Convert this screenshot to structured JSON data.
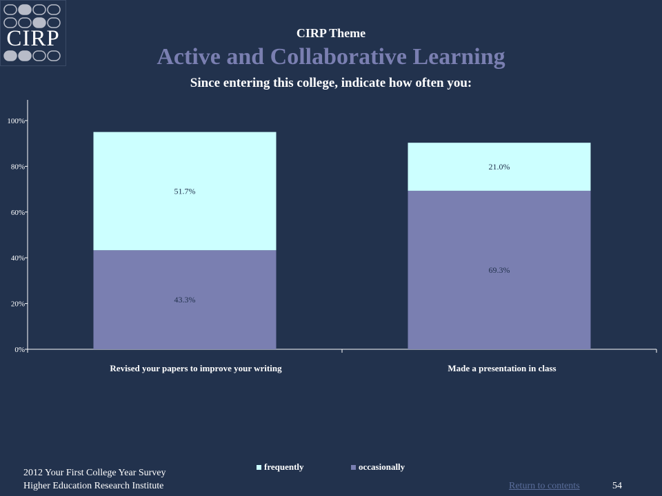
{
  "logo": {
    "text": "CIRP"
  },
  "header": {
    "theme_label": "CIRP Theme",
    "title": "Active and Collaborative Learning",
    "subtitle": "Since entering this college, indicate how often you:"
  },
  "colors": {
    "background": "#22324d",
    "title_accent": "#7a7fb1",
    "frequently": "#ccffff",
    "occasionally": "#7a7fb1",
    "link": "#5a6d9a"
  },
  "chart_data": {
    "type": "bar",
    "stacked": true,
    "categories": [
      "Revised your papers to improve your writing",
      "Made a presentation in class"
    ],
    "series": [
      {
        "name": "occasionally",
        "values": [
          43.3,
          69.3
        ],
        "labels": [
          "43.3%",
          "69.3%"
        ]
      },
      {
        "name": "frequently",
        "values": [
          51.7,
          21.0
        ],
        "labels": [
          "51.7%",
          "21.0%"
        ]
      }
    ],
    "yticks": [
      "0%",
      "20%",
      "40%",
      "60%",
      "80%",
      "100%"
    ],
    "ylim": [
      0,
      100
    ],
    "legend_position": "bottom",
    "grid": false
  },
  "legend": {
    "frequently": "frequently",
    "occasionally": "occasionally"
  },
  "footer": {
    "line1": "2012 Your First College Year Survey",
    "line2": "Higher Education Research Institute",
    "link": "Return to contents",
    "page": "54"
  }
}
